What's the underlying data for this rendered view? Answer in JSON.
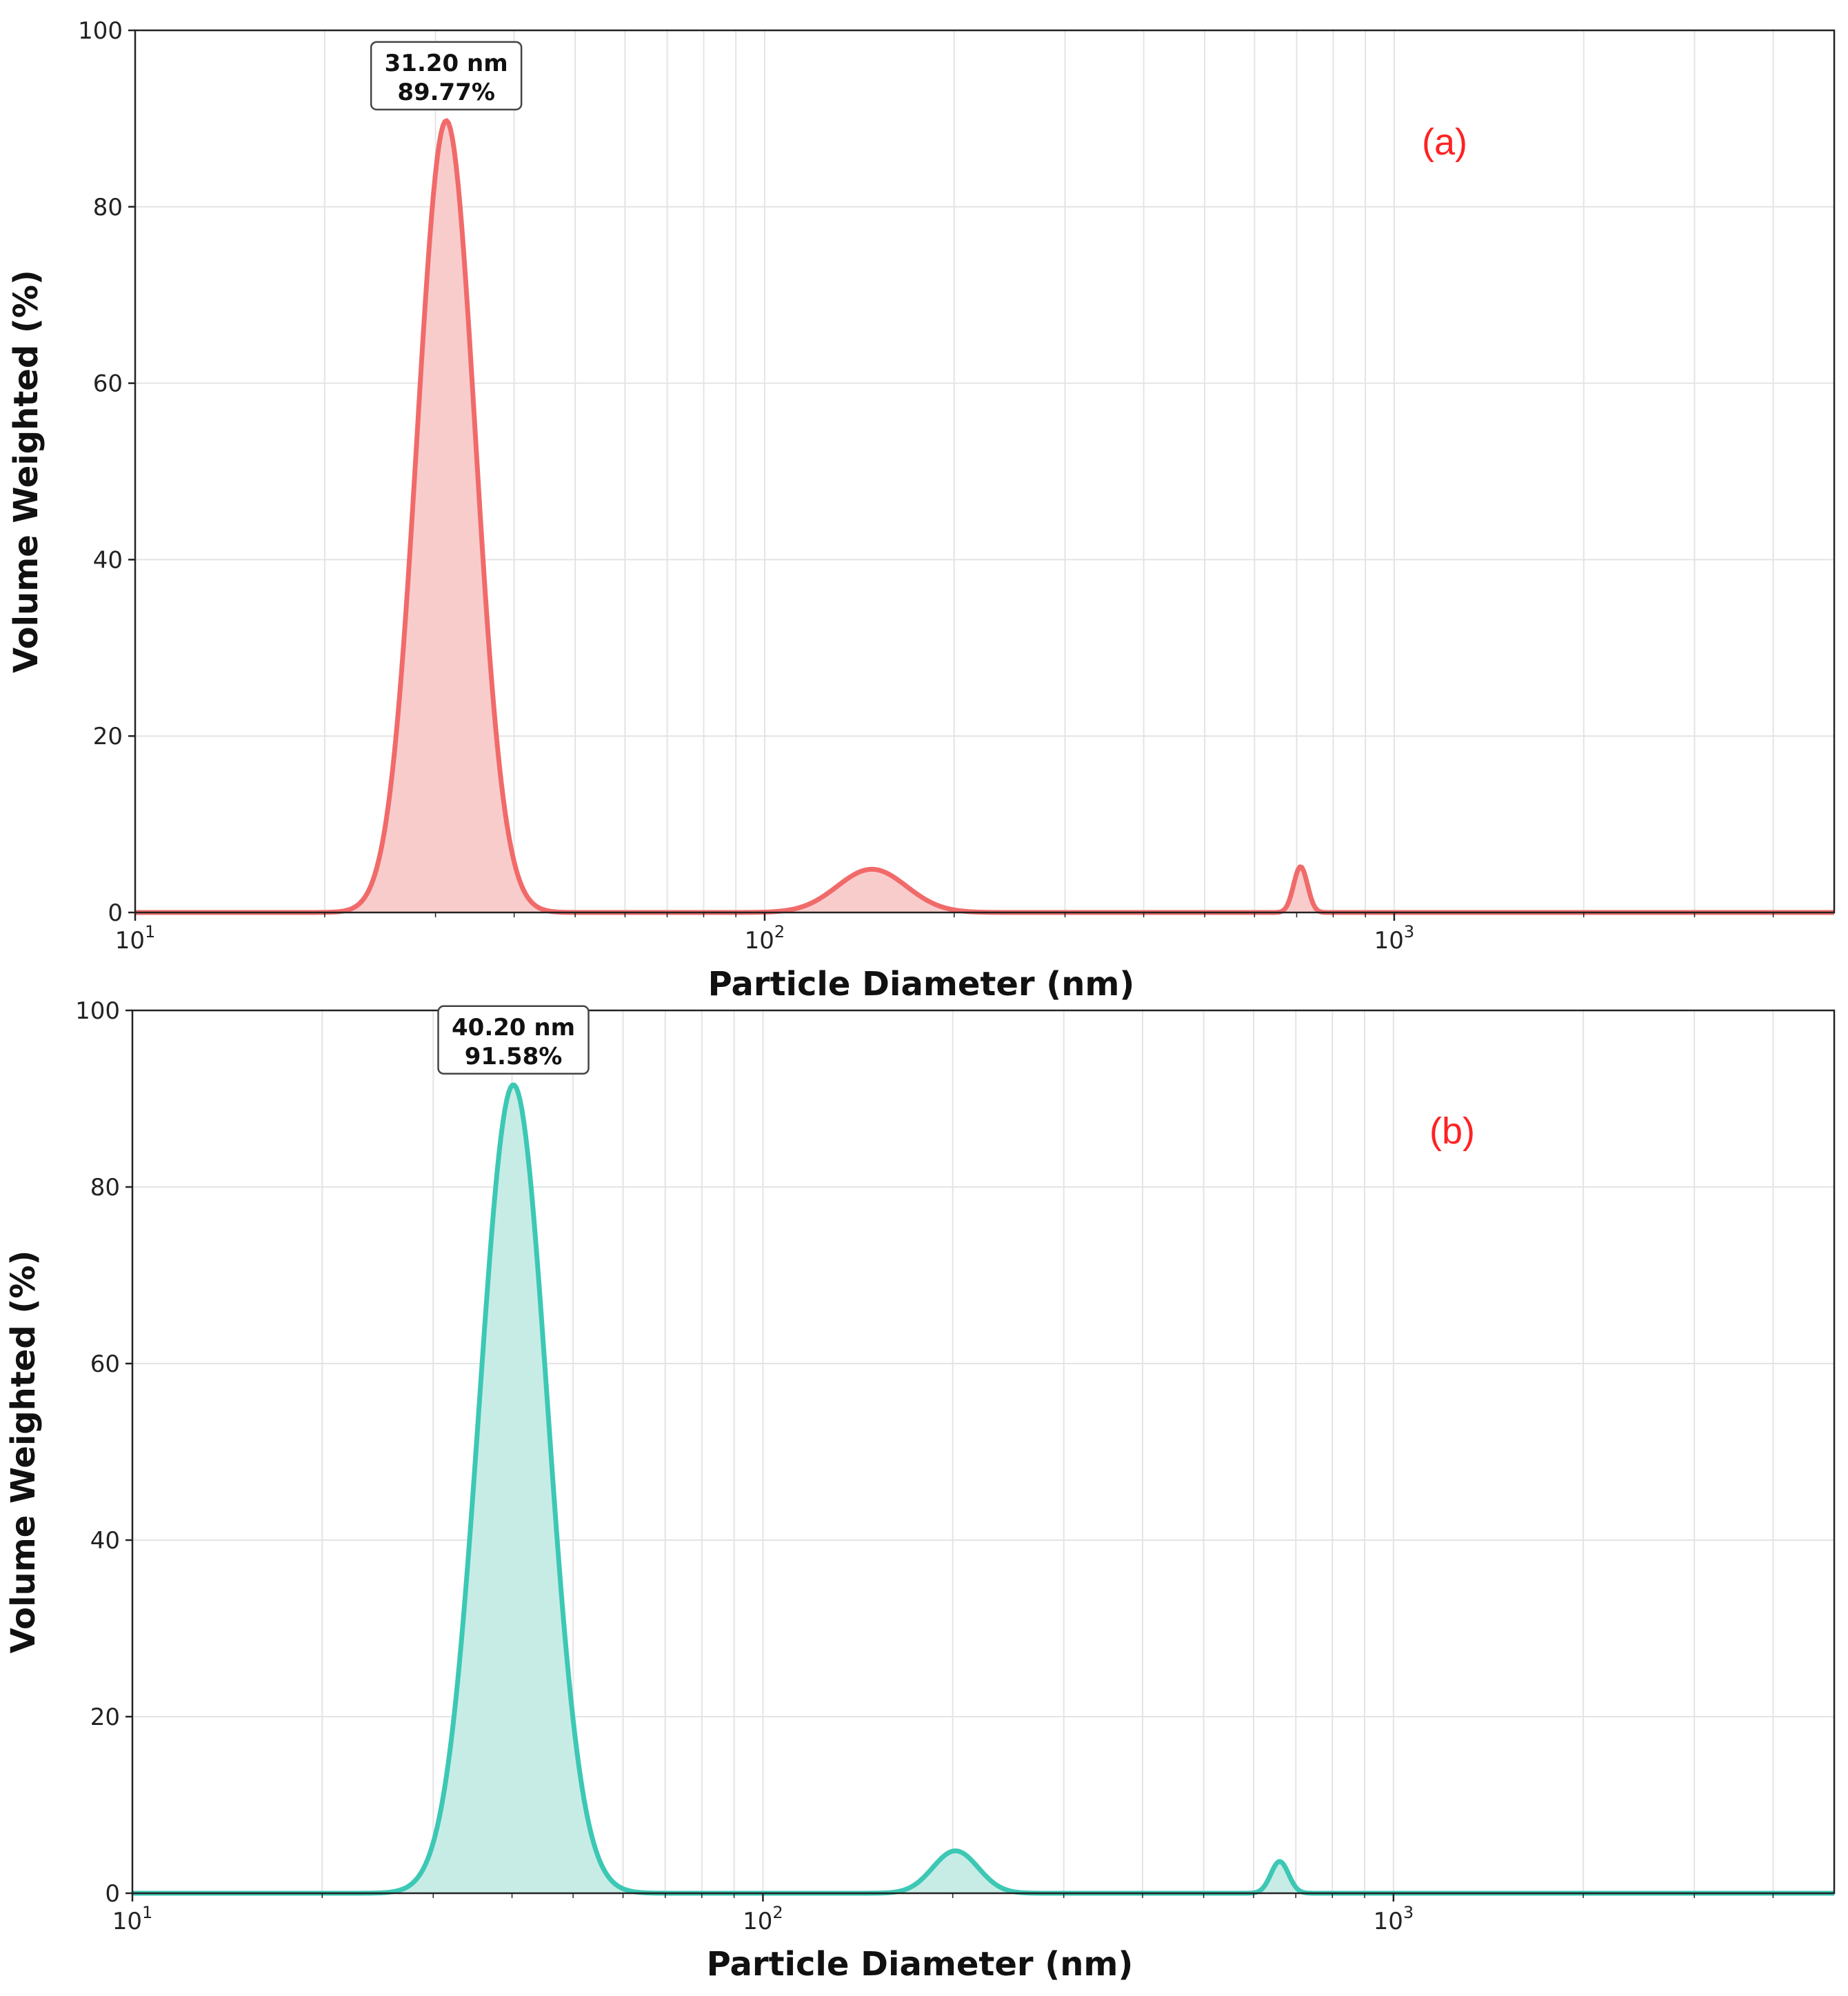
{
  "chart_data": [
    {
      "id": "a",
      "type": "area",
      "panel_label": "(a)",
      "panel_label_color": "#ff2222",
      "xlabel": "Particle Diameter (nm)",
      "ylabel": "Volume Weighted (%)",
      "xscale": "log",
      "xlim": [
        10,
        5000
      ],
      "ylim": [
        0,
        100
      ],
      "yticks": [
        0,
        20,
        40,
        60,
        80,
        100
      ],
      "ytick_labels": [
        "0",
        "20",
        "40",
        "60",
        "80",
        "100"
      ],
      "xticks": [
        {
          "value": 10,
          "base": "10",
          "exp": "1"
        },
        {
          "value": 100,
          "base": "10",
          "exp": "2"
        },
        {
          "value": 1000,
          "base": "10",
          "exp": "3"
        }
      ],
      "grid": true,
      "line_color": "#f16a6a",
      "fill_color": "#f9cccc",
      "peaks": [
        {
          "center": 31.2,
          "height": 89.77,
          "log_sigma": 0.046
        },
        {
          "center": 148,
          "height": 4.9,
          "log_sigma": 0.055
        },
        {
          "center": 710,
          "height": 5.2,
          "log_sigma": 0.011
        }
      ],
      "annotation": {
        "x": 31.2,
        "y": 89.77,
        "line1": "31.20 nm",
        "line2": "89.77%"
      }
    },
    {
      "id": "b",
      "type": "area",
      "panel_label": "(b)",
      "panel_label_color": "#ff2222",
      "xlabel": "Particle Diameter (nm)",
      "ylabel": "Volume Weighted (%)",
      "xscale": "log",
      "xlim": [
        10,
        5000
      ],
      "ylim": [
        0,
        100
      ],
      "yticks": [
        0,
        20,
        40,
        60,
        80,
        100
      ],
      "ytick_labels": [
        "0",
        "20",
        "40",
        "60",
        "80",
        "100"
      ],
      "xticks": [
        {
          "value": 10,
          "base": "10",
          "exp": "1"
        },
        {
          "value": 100,
          "base": "10",
          "exp": "2"
        },
        {
          "value": 1000,
          "base": "10",
          "exp": "3"
        }
      ],
      "grid": true,
      "line_color": "#3cc8b4",
      "fill_color": "#c7ece6",
      "peaks": [
        {
          "center": 40.2,
          "height": 91.58,
          "log_sigma": 0.054
        },
        {
          "center": 202,
          "height": 4.8,
          "log_sigma": 0.036
        },
        {
          "center": 660,
          "height": 3.6,
          "log_sigma": 0.014
        }
      ],
      "annotation": {
        "x": 40.2,
        "y": 91.58,
        "line1": "40.20 nm",
        "line2": "91.58%"
      }
    }
  ]
}
